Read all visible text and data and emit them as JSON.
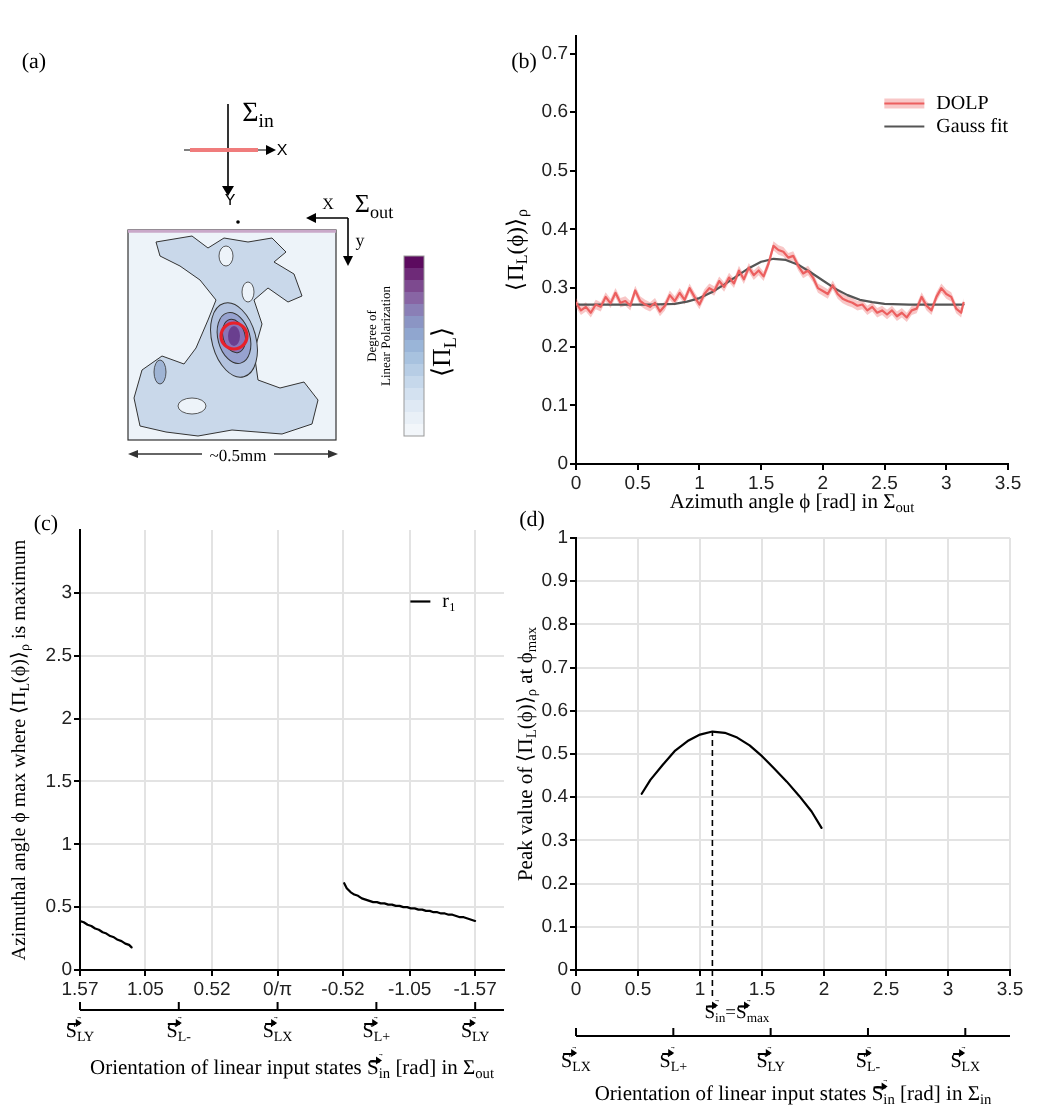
{
  "chart_data": [
    {
      "type": "other",
      "title": "(a)",
      "annotations": [
        "Σ$_{in}$",
        "X",
        "Y",
        "Σ$_{out}$",
        "X",
        "y",
        "Degree of\nLinear Polarization",
        "⟨Π$_{L}$⟩",
        "~0.5mm"
      ]
    },
    {
      "type": "line",
      "title": "(b)",
      "xlabel": "Azimuth angle ϕ [rad] in Σ$_{out}$",
      "ylabel": "⟨Π$_{L}$(ϕ)⟩$_{ρ}$",
      "x": [
        0,
        0.04,
        0.08,
        0.12,
        0.16,
        0.2,
        0.24,
        0.28,
        0.32,
        0.36,
        0.4,
        0.44,
        0.48,
        0.52,
        0.56,
        0.6,
        0.64,
        0.68,
        0.72,
        0.76,
        0.8,
        0.84,
        0.88,
        0.92,
        0.96,
        1,
        1.04,
        1.08,
        1.12,
        1.16,
        1.2,
        1.24,
        1.28,
        1.32,
        1.36,
        1.4,
        1.44,
        1.48,
        1.52,
        1.56,
        1.6,
        1.64,
        1.68,
        1.72,
        1.76,
        1.8,
        1.84,
        1.88,
        1.92,
        1.96,
        2,
        2.04,
        2.08,
        2.12,
        2.16,
        2.2,
        2.24,
        2.28,
        2.32,
        2.36,
        2.4,
        2.44,
        2.48,
        2.52,
        2.56,
        2.6,
        2.64,
        2.68,
        2.72,
        2.76,
        2.8,
        2.84,
        2.88,
        2.92,
        2.96,
        3,
        3.04,
        3.08,
        3.12,
        3.14
      ],
      "series": [
        {
          "name": "DOLP",
          "color": "#ec5f5f",
          "values": [
            0.275,
            0.262,
            0.268,
            0.258,
            0.272,
            0.268,
            0.285,
            0.274,
            0.292,
            0.275,
            0.278,
            0.27,
            0.296,
            0.278,
            0.272,
            0.268,
            0.275,
            0.26,
            0.27,
            0.288,
            0.278,
            0.292,
            0.28,
            0.3,
            0.285,
            0.272,
            0.29,
            0.3,
            0.295,
            0.312,
            0.302,
            0.318,
            0.308,
            0.33,
            0.315,
            0.335,
            0.322,
            0.33,
            0.32,
            0.342,
            0.372,
            0.365,
            0.362,
            0.352,
            0.355,
            0.338,
            0.325,
            0.33,
            0.318,
            0.3,
            0.295,
            0.29,
            0.305,
            0.29,
            0.282,
            0.278,
            0.275,
            0.27,
            0.272,
            0.262,
            0.268,
            0.258,
            0.262,
            0.255,
            0.262,
            0.252,
            0.258,
            0.25,
            0.262,
            0.265,
            0.285,
            0.27,
            0.262,
            0.285,
            0.3,
            0.29,
            0.285,
            0.265,
            0.258,
            0.275
          ],
          "lower": [
            0.267,
            0.254,
            0.26,
            0.25,
            0.264,
            0.26,
            0.277,
            0.266,
            0.284,
            0.267,
            0.27,
            0.262,
            0.288,
            0.27,
            0.264,
            0.26,
            0.267,
            0.252,
            0.262,
            0.28,
            0.27,
            0.284,
            0.272,
            0.292,
            0.277,
            0.264,
            0.282,
            0.292,
            0.287,
            0.304,
            0.294,
            0.31,
            0.3,
            0.322,
            0.307,
            0.327,
            0.314,
            0.322,
            0.312,
            0.334,
            0.364,
            0.357,
            0.354,
            0.344,
            0.347,
            0.33,
            0.317,
            0.322,
            0.31,
            0.292,
            0.287,
            0.282,
            0.297,
            0.282,
            0.274,
            0.27,
            0.267,
            0.262,
            0.264,
            0.254,
            0.26,
            0.25,
            0.254,
            0.247,
            0.254,
            0.244,
            0.25,
            0.242,
            0.254,
            0.257,
            0.277,
            0.262,
            0.254,
            0.277,
            0.292,
            0.282,
            0.277,
            0.257,
            0.25,
            0.267
          ],
          "upper": [
            0.283,
            0.27,
            0.276,
            0.266,
            0.28,
            0.276,
            0.293,
            0.282,
            0.3,
            0.283,
            0.286,
            0.278,
            0.304,
            0.286,
            0.28,
            0.276,
            0.283,
            0.268,
            0.278,
            0.296,
            0.286,
            0.3,
            0.288,
            0.308,
            0.293,
            0.28,
            0.298,
            0.308,
            0.303,
            0.32,
            0.31,
            0.326,
            0.316,
            0.338,
            0.323,
            0.343,
            0.33,
            0.338,
            0.328,
            0.35,
            0.38,
            0.373,
            0.37,
            0.36,
            0.363,
            0.346,
            0.333,
            0.338,
            0.326,
            0.308,
            0.303,
            0.298,
            0.313,
            0.298,
            0.29,
            0.286,
            0.283,
            0.278,
            0.28,
            0.27,
            0.276,
            0.266,
            0.27,
            0.263,
            0.27,
            0.26,
            0.266,
            0.258,
            0.27,
            0.273,
            0.293,
            0.278,
            0.27,
            0.293,
            0.308,
            0.298,
            0.293,
            0.273,
            0.266,
            0.283
          ]
        },
        {
          "name": "Gauss fit",
          "color": "#555555",
          "x": [
            0,
            0.2,
            0.4,
            0.6,
            0.8,
            0.9,
            1.0,
            1.1,
            1.2,
            1.3,
            1.4,
            1.5,
            1.6,
            1.7,
            1.8,
            1.9,
            2.0,
            2.1,
            2.2,
            2.3,
            2.4,
            2.5,
            2.7,
            2.9,
            3.14
          ],
          "values": [
            0.272,
            0.272,
            0.272,
            0.272,
            0.273,
            0.277,
            0.283,
            0.293,
            0.306,
            0.32,
            0.334,
            0.345,
            0.35,
            0.348,
            0.34,
            0.327,
            0.313,
            0.299,
            0.288,
            0.28,
            0.276,
            0.273,
            0.272,
            0.272,
            0.272
          ]
        }
      ],
      "xlim": [
        0,
        3.5
      ],
      "xticks": [
        0,
        0.5,
        1,
        1.5,
        2,
        2.5,
        3,
        3.5
      ],
      "ylim": [
        0,
        0.73
      ],
      "yticks": [
        0,
        0.1,
        0.2,
        0.3,
        0.4,
        0.5,
        0.6,
        0.7
      ],
      "legend": "top right"
    },
    {
      "type": "line",
      "title": "(c)",
      "xlabel": "Orientation of linear input states S⃗$_{in}$ [rad] in Σ$_{out}$",
      "ylabel": "Azimuthal angle ϕ max where ⟨Π$_{L}$(ϕ)⟩$_{ρ}$ is maximum",
      "series": [
        {
          "name": "r₁",
          "color": "#000000",
          "x": [
            1.57,
            1.54,
            1.51,
            1.48,
            1.45,
            1.42,
            1.39,
            1.36,
            1.33,
            1.3,
            1.27,
            1.24,
            1.21,
            1.18,
            1.16,
            0,
            -0.53,
            -0.55,
            -0.58,
            -0.61,
            -0.64,
            -0.67,
            -0.7,
            -0.73,
            -0.76,
            -0.79,
            -0.82,
            -0.85,
            -0.88,
            -0.91,
            -0.94,
            -0.97,
            -1.0,
            -1.03,
            -1.06,
            -1.09,
            -1.12,
            -1.15,
            -1.18,
            -1.21,
            -1.24,
            -1.27,
            -1.3,
            -1.33,
            -1.36,
            -1.39,
            -1.42,
            -1.45,
            -1.48,
            -1.51,
            -1.54,
            -1.57
          ],
          "values": [
            0.39,
            0.38,
            0.36,
            0.35,
            0.33,
            0.32,
            0.3,
            0.29,
            0.27,
            0.26,
            0.24,
            0.23,
            0.21,
            0.2,
            0.18,
            null,
            0.69,
            0.65,
            0.62,
            0.6,
            0.59,
            0.57,
            0.56,
            0.55,
            0.54,
            0.54,
            0.53,
            0.53,
            0.52,
            0.52,
            0.51,
            0.51,
            0.5,
            0.5,
            0.49,
            0.49,
            0.48,
            0.48,
            0.47,
            0.47,
            0.46,
            0.46,
            0.45,
            0.45,
            0.44,
            0.44,
            0.43,
            0.42,
            0.42,
            0.41,
            0.4,
            0.39
          ]
        }
      ],
      "xlim": [
        1.57,
        -1.8
      ],
      "xticks": [
        1.57,
        1.05,
        0.52,
        {
          "value": 0,
          "label": "0/π"
        },
        -0.52,
        -1.05,
        -1.57
      ],
      "ylim": [
        0,
        3.5
      ],
      "yticks": [
        0,
        0.5,
        1,
        1.5,
        2,
        2.5,
        3
      ],
      "annotations": [
        "S⃗$_{LY}$",
        "S⃗$_{L-}$",
        "S⃗$_{LX}$",
        "S⃗$_{L+}$",
        "S⃗$_{LY}$"
      ],
      "grid": true,
      "legend": "top right"
    },
    {
      "type": "line",
      "title": "(d)",
      "xlabel": "Orientation of linear input states S⃗$_{in}$ [rad] in Σ$_{in}$",
      "ylabel": "Peak value of ⟨Π$_{L}$(ϕ)⟩$_{ρ}$ at ϕ$_{max}$",
      "x": [
        0.53,
        0.6,
        0.7,
        0.8,
        0.9,
        1.0,
        1.1,
        1.2,
        1.3,
        1.4,
        1.5,
        1.6,
        1.7,
        1.8,
        1.9,
        1.98
      ],
      "values": [
        0.408,
        0.44,
        0.475,
        0.508,
        0.53,
        0.545,
        0.552,
        0.549,
        0.538,
        0.52,
        0.495,
        0.466,
        0.436,
        0.403,
        0.367,
        0.329
      ],
      "color": "#000000",
      "xlim": [
        0,
        3.5
      ],
      "xticks": [
        0,
        0.5,
        1,
        1.5,
        2,
        2.5,
        3,
        3.5
      ],
      "ylim": [
        0,
        1
      ],
      "yticks": [
        0,
        0.1,
        0.2,
        0.3,
        0.4,
        0.5,
        0.6,
        0.7,
        0.8,
        0.9,
        1
      ],
      "annotations": [
        "S⃗$_{LX}$",
        "S⃗$_{L+}$",
        "S⃗$_{LY}$",
        "S⃗$_{L-}$",
        "S⃗$_{LX}$"
      ],
      "grid": true,
      "ref_lines": [
        {
          "axis": "x",
          "value": 1.1,
          "label": "S⃗$_{in}$=S⃗$_{max}$",
          "line_style": "dashed",
          "color": "#000000"
        }
      ]
    }
  ]
}
